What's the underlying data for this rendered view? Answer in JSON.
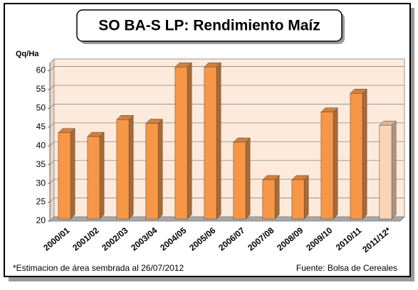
{
  "chart_data": {
    "type": "bar3d",
    "title": "SO BA-S LP: Rendimiento Maíz",
    "y_label": "Qq/Ha",
    "categories": [
      "2000/01",
      "2001/02",
      "2002/03",
      "2003/04",
      "2004/05",
      "2005/06",
      "2006/07",
      "2007/08",
      "2008/09",
      "2009/10",
      "2010/11",
      "2011/12*"
    ],
    "values": [
      43.5,
      42.5,
      47,
      46,
      61,
      61,
      41,
      31,
      31,
      49,
      54,
      45.5
    ],
    "colors": [
      "#f79646",
      "#f79646",
      "#f79646",
      "#f79646",
      "#f79646",
      "#f79646",
      "#f79646",
      "#f79646",
      "#f79646",
      "#f79646",
      "#f79646",
      "#fcd5b4"
    ],
    "ylim": [
      20,
      62
    ],
    "yticks": [
      20,
      25,
      30,
      35,
      40,
      45,
      50,
      55,
      60
    ],
    "grid": true,
    "footnote": "*Estimacion de área sembrada al 26/07/2012",
    "source": "Fuente: Bolsa de Cereales"
  }
}
